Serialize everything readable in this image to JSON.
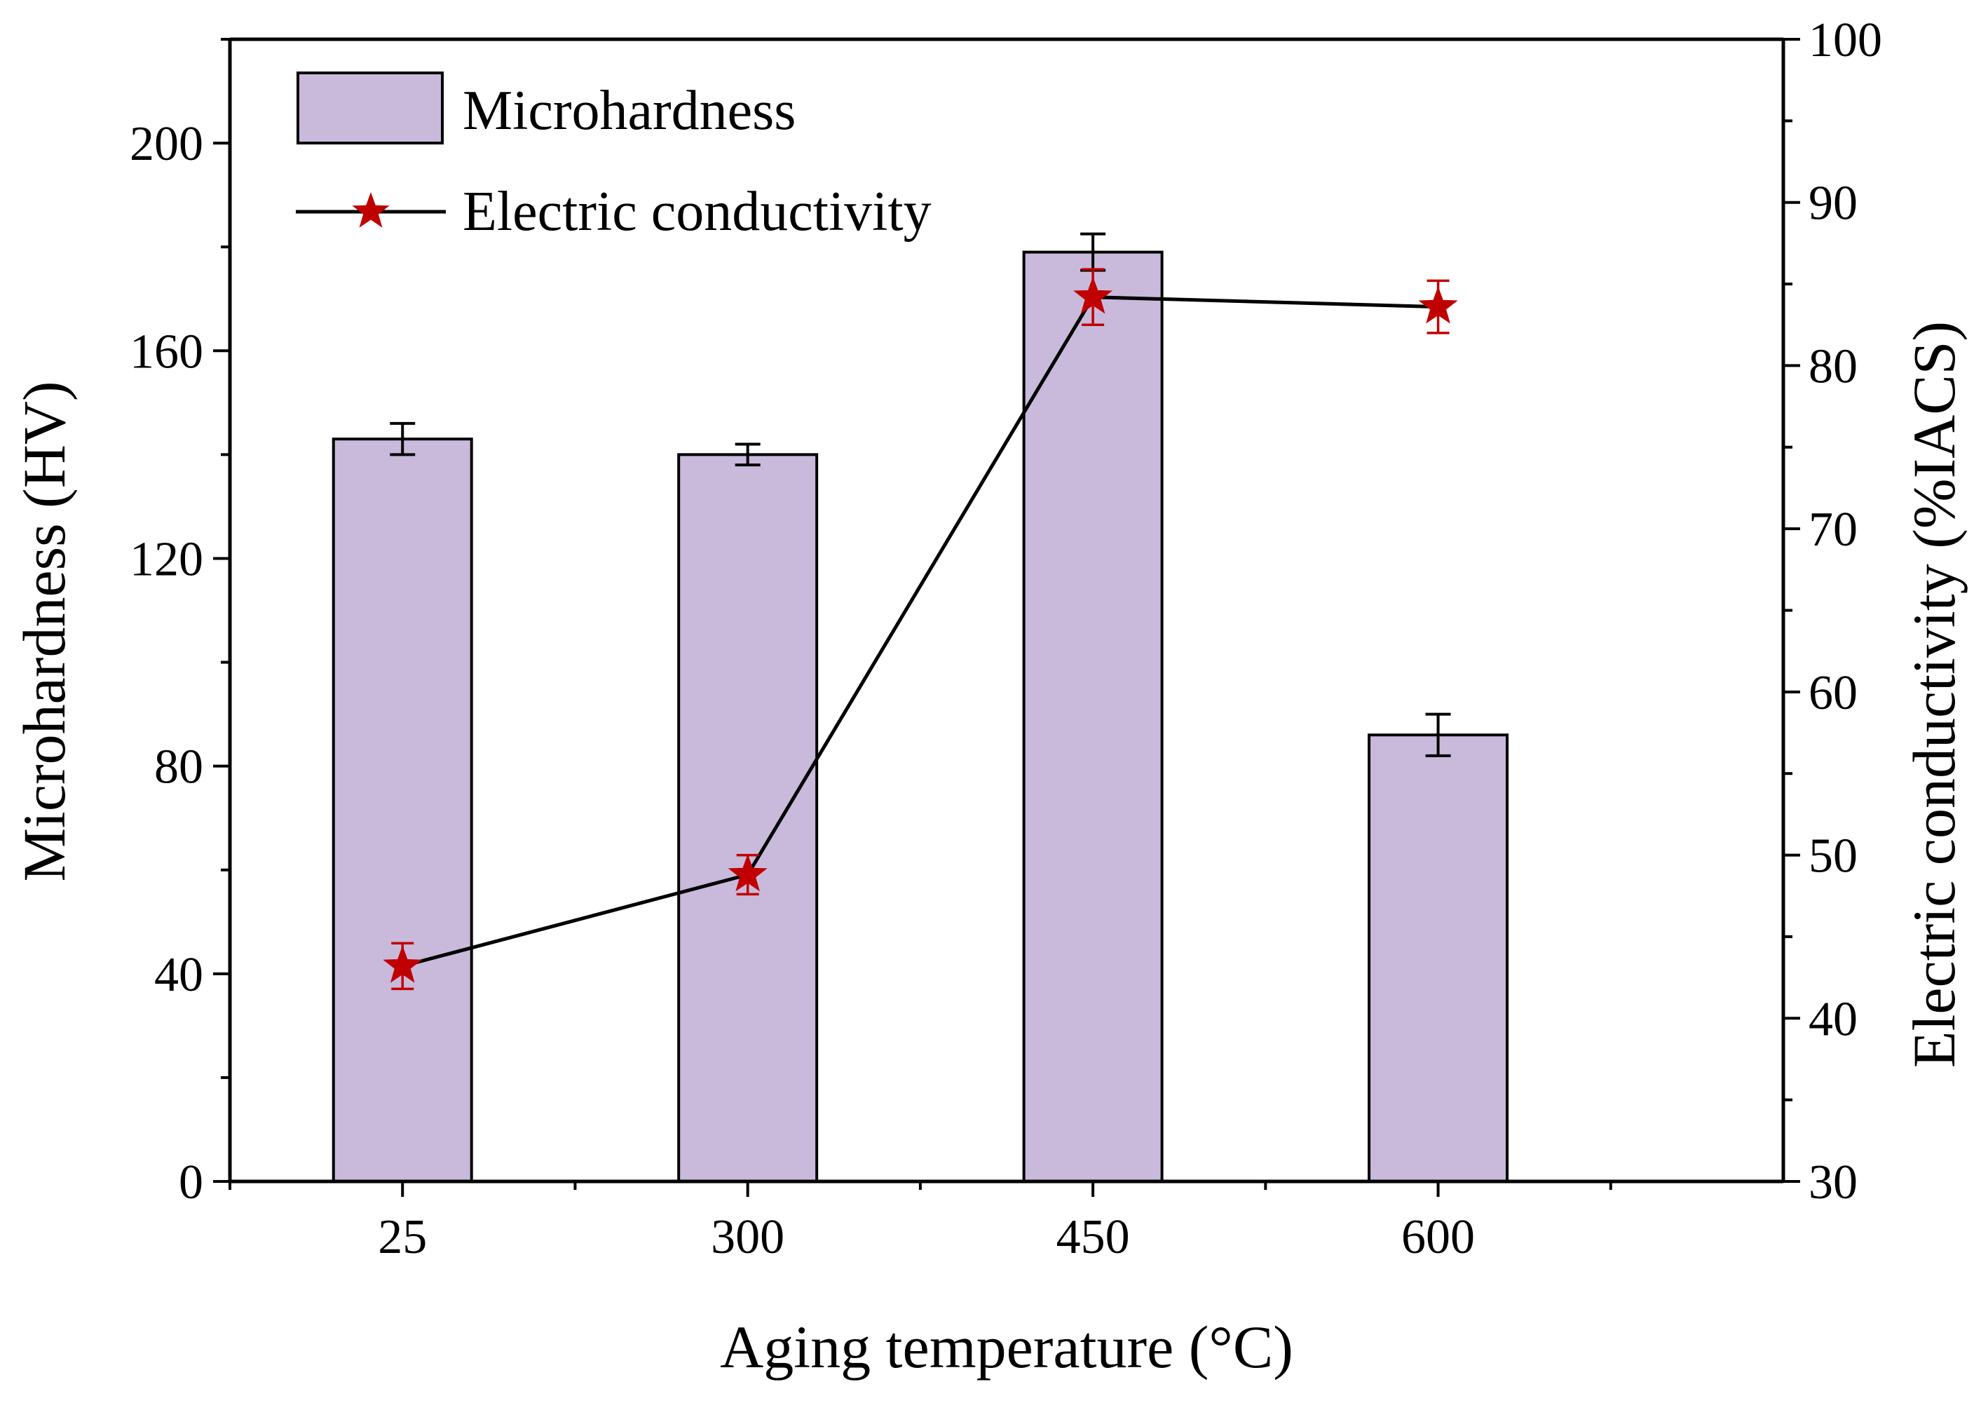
{
  "chart_data": {
    "type": "bar",
    "categories": [
      "25",
      "300",
      "450",
      "600"
    ],
    "xlabel": "Aging temperature (°C)",
    "ylabel_left": "Microhardness (HV)",
    "ylabel_right": "Electric conductivity (%IACS)",
    "ylim_left": [
      0,
      220
    ],
    "yticks_left": [
      "0",
      "40",
      "80",
      "120",
      "160",
      "200"
    ],
    "ylim_right": [
      30,
      100
    ],
    "yticks_right": [
      "30",
      "40",
      "50",
      "60",
      "70",
      "80",
      "90",
      "100"
    ],
    "grid": false,
    "legend_position": "top-left",
    "series": [
      {
        "name": "Microhardness",
        "type": "bar",
        "axis": "left",
        "color": "#c9badc",
        "values": [
          143,
          140,
          179,
          86
        ],
        "errors": [
          3,
          2,
          3.5,
          4
        ]
      },
      {
        "name": "Electric conductivity",
        "type": "line",
        "axis": "right",
        "color": "#c00000",
        "line_color": "#000000",
        "marker": "star",
        "values": [
          43.2,
          48.8,
          84.2,
          83.6
        ],
        "errors": [
          1.4,
          1.2,
          1.7,
          1.6
        ]
      }
    ]
  }
}
